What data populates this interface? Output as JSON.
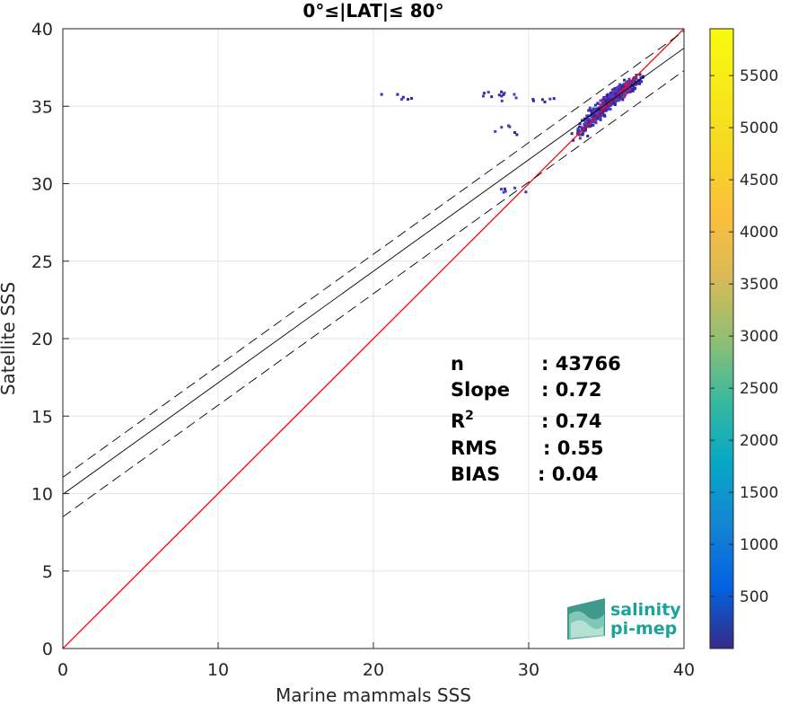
{
  "chart_data": {
    "type": "heatmap",
    "title": "0°≤|LAT|≤ 80°",
    "xlabel": "Marine mammals SSS",
    "ylabel": "Satellite SSS",
    "xlim": [
      0,
      40
    ],
    "ylim": [
      0,
      40
    ],
    "xticks": [
      0,
      10,
      20,
      30,
      40
    ],
    "yticks": [
      0,
      5,
      10,
      15,
      20,
      25,
      30,
      35,
      40
    ],
    "grid": true,
    "colorbar": {
      "ticks": [
        500,
        1000,
        1500,
        2000,
        2500,
        3000,
        3500,
        4000,
        4500,
        5000,
        5500
      ],
      "range": [
        1,
        5950
      ],
      "colormap": "parula"
    },
    "lines": [
      {
        "name": "1:1",
        "color": "#ff0000",
        "style": "solid",
        "slope": 1.0,
        "intercept": 0.0
      },
      {
        "name": "fit",
        "color": "#000000",
        "style": "solid",
        "slope": 0.72,
        "intercept": 9.95
      },
      {
        "name": "fit_upper",
        "color": "#000000",
        "style": "dashed",
        "slope": 0.72,
        "intercept": 11.05
      },
      {
        "name": "fit_lower",
        "color": "#000000",
        "style": "dashed",
        "slope": 0.72,
        "intercept": 8.5
      }
    ],
    "density_clusters": [
      {
        "x": 35.8,
        "y": 35.9,
        "count": 3000
      },
      {
        "x": 35.3,
        "y": 35.4,
        "count": 1800
      },
      {
        "x": 34.8,
        "y": 34.9,
        "count": 1200
      },
      {
        "x": 34.2,
        "y": 34.3,
        "count": 800
      },
      {
        "x": 33.8,
        "y": 33.8,
        "count": 400
      },
      {
        "x": 36.3,
        "y": 36.2,
        "count": 1500
      },
      {
        "x": 33.5,
        "y": 33.3,
        "count": 200
      },
      {
        "x": 27.6,
        "y": 35.7,
        "count": 15
      },
      {
        "x": 28.5,
        "y": 35.6,
        "count": 12
      },
      {
        "x": 30.8,
        "y": 35.4,
        "count": 8
      },
      {
        "x": 21.5,
        "y": 35.6,
        "count": 5
      },
      {
        "x": 29.0,
        "y": 29.6,
        "count": 6
      },
      {
        "x": 28.8,
        "y": 33.5,
        "count": 4
      }
    ],
    "stats": [
      {
        "label": "n",
        "value": ": 43766"
      },
      {
        "label": "Slope",
        "value": ": 0.72"
      },
      {
        "label": "R",
        "sup": "2",
        "value": ": 0.74"
      },
      {
        "label": "RMS",
        "value": ": 0.55"
      },
      {
        "label": "BIAS",
        "value": ": 0.04"
      }
    ]
  },
  "logo": {
    "line1": "salinity",
    "line2": "pi-mep"
  }
}
